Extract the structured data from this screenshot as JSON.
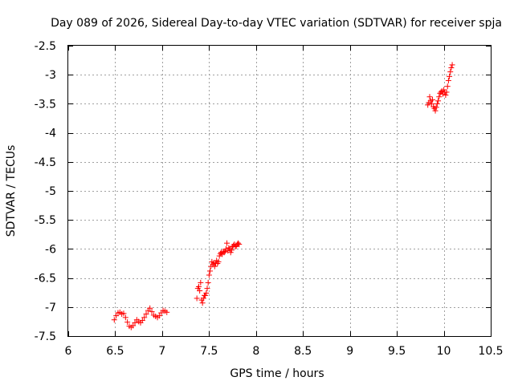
{
  "chart_data": {
    "type": "scatter",
    "title": "Day 089 of 2026, Sidereal Day-to-day VTEC variation (SDTVAR) for receiver spja",
    "xlabel": "GPS time / hours",
    "ylabel": "SDTVAR / TECUs",
    "xlim": [
      6,
      10.5
    ],
    "ylim": [
      -7.5,
      -2.5
    ],
    "grid": true,
    "marker": "+",
    "color": "#ff0000",
    "xticks": [
      "6",
      "6.5",
      "7",
      "7.5",
      "8",
      "8.5",
      "9",
      "9.5",
      "10",
      "10.5"
    ],
    "yticks": [
      "-2.5",
      "-3",
      "-3.5",
      "-4",
      "-4.5",
      "-5",
      "-5.5",
      "-6",
      "-6.5",
      "-7",
      "-7.5"
    ],
    "series": [
      {
        "name": "SDTVAR",
        "x": [
          6.49,
          6.51,
          6.53,
          6.55,
          6.57,
          6.59,
          6.61,
          6.63,
          6.65,
          6.67,
          6.69,
          6.71,
          6.73,
          6.75,
          6.77,
          6.79,
          6.81,
          6.83,
          6.85,
          6.87,
          6.89,
          6.91,
          6.93,
          6.95,
          6.97,
          6.99,
          7.01,
          7.03,
          7.05,
          7.37,
          7.38,
          7.39,
          7.4,
          7.41,
          7.42,
          7.43,
          7.44,
          7.45,
          7.46,
          7.47,
          7.48,
          7.49,
          7.5,
          7.51,
          7.52,
          7.53,
          7.54,
          7.55,
          7.56,
          7.57,
          7.58,
          7.59,
          7.6,
          7.61,
          7.62,
          7.63,
          7.64,
          7.65,
          7.66,
          7.67,
          7.68,
          7.69,
          7.7,
          7.71,
          7.72,
          7.73,
          7.74,
          7.75,
          7.76,
          7.77,
          7.78,
          7.79,
          7.8,
          7.81,
          7.82,
          9.83,
          9.84,
          9.85,
          9.86,
          9.87,
          9.88,
          9.89,
          9.9,
          9.91,
          9.92,
          9.93,
          9.94,
          9.95,
          9.96,
          9.97,
          9.98,
          9.99,
          10.0,
          10.01,
          10.02,
          10.03,
          10.04,
          10.05,
          10.06,
          10.07,
          10.08,
          10.09
        ],
        "y": [
          -7.22,
          -7.15,
          -7.1,
          -7.09,
          -7.12,
          -7.11,
          -7.18,
          -7.26,
          -7.33,
          -7.35,
          -7.32,
          -7.27,
          -7.22,
          -7.25,
          -7.27,
          -7.23,
          -7.18,
          -7.12,
          -7.06,
          -7.02,
          -7.08,
          -7.14,
          -7.16,
          -7.18,
          -7.15,
          -7.1,
          -7.06,
          -7.07,
          -7.09,
          -6.85,
          -6.68,
          -6.65,
          -6.72,
          -6.58,
          -6.88,
          -6.93,
          -6.85,
          -6.8,
          -6.8,
          -6.76,
          -6.68,
          -6.58,
          -6.45,
          -6.38,
          -6.3,
          -6.22,
          -6.27,
          -6.24,
          -6.3,
          -6.25,
          -6.2,
          -6.25,
          -6.22,
          -6.12,
          -6.08,
          -6.06,
          -6.09,
          -6.05,
          -6.06,
          -6.04,
          -6.0,
          -5.9,
          -6.03,
          -5.98,
          -6.0,
          -6.06,
          -6.02,
          -5.96,
          -5.94,
          -5.92,
          -5.96,
          -5.95,
          -5.92,
          -5.9,
          -5.92,
          -3.52,
          -3.48,
          -3.38,
          -3.45,
          -3.5,
          -3.43,
          -3.55,
          -3.58,
          -3.62,
          -3.56,
          -3.5,
          -3.45,
          -3.38,
          -3.32,
          -3.3,
          -3.28,
          -3.33,
          -3.26,
          -3.3,
          -3.35,
          -3.3,
          -3.2,
          -3.1,
          -3.03,
          -2.95,
          -2.88,
          -2.83
        ]
      }
    ]
  }
}
